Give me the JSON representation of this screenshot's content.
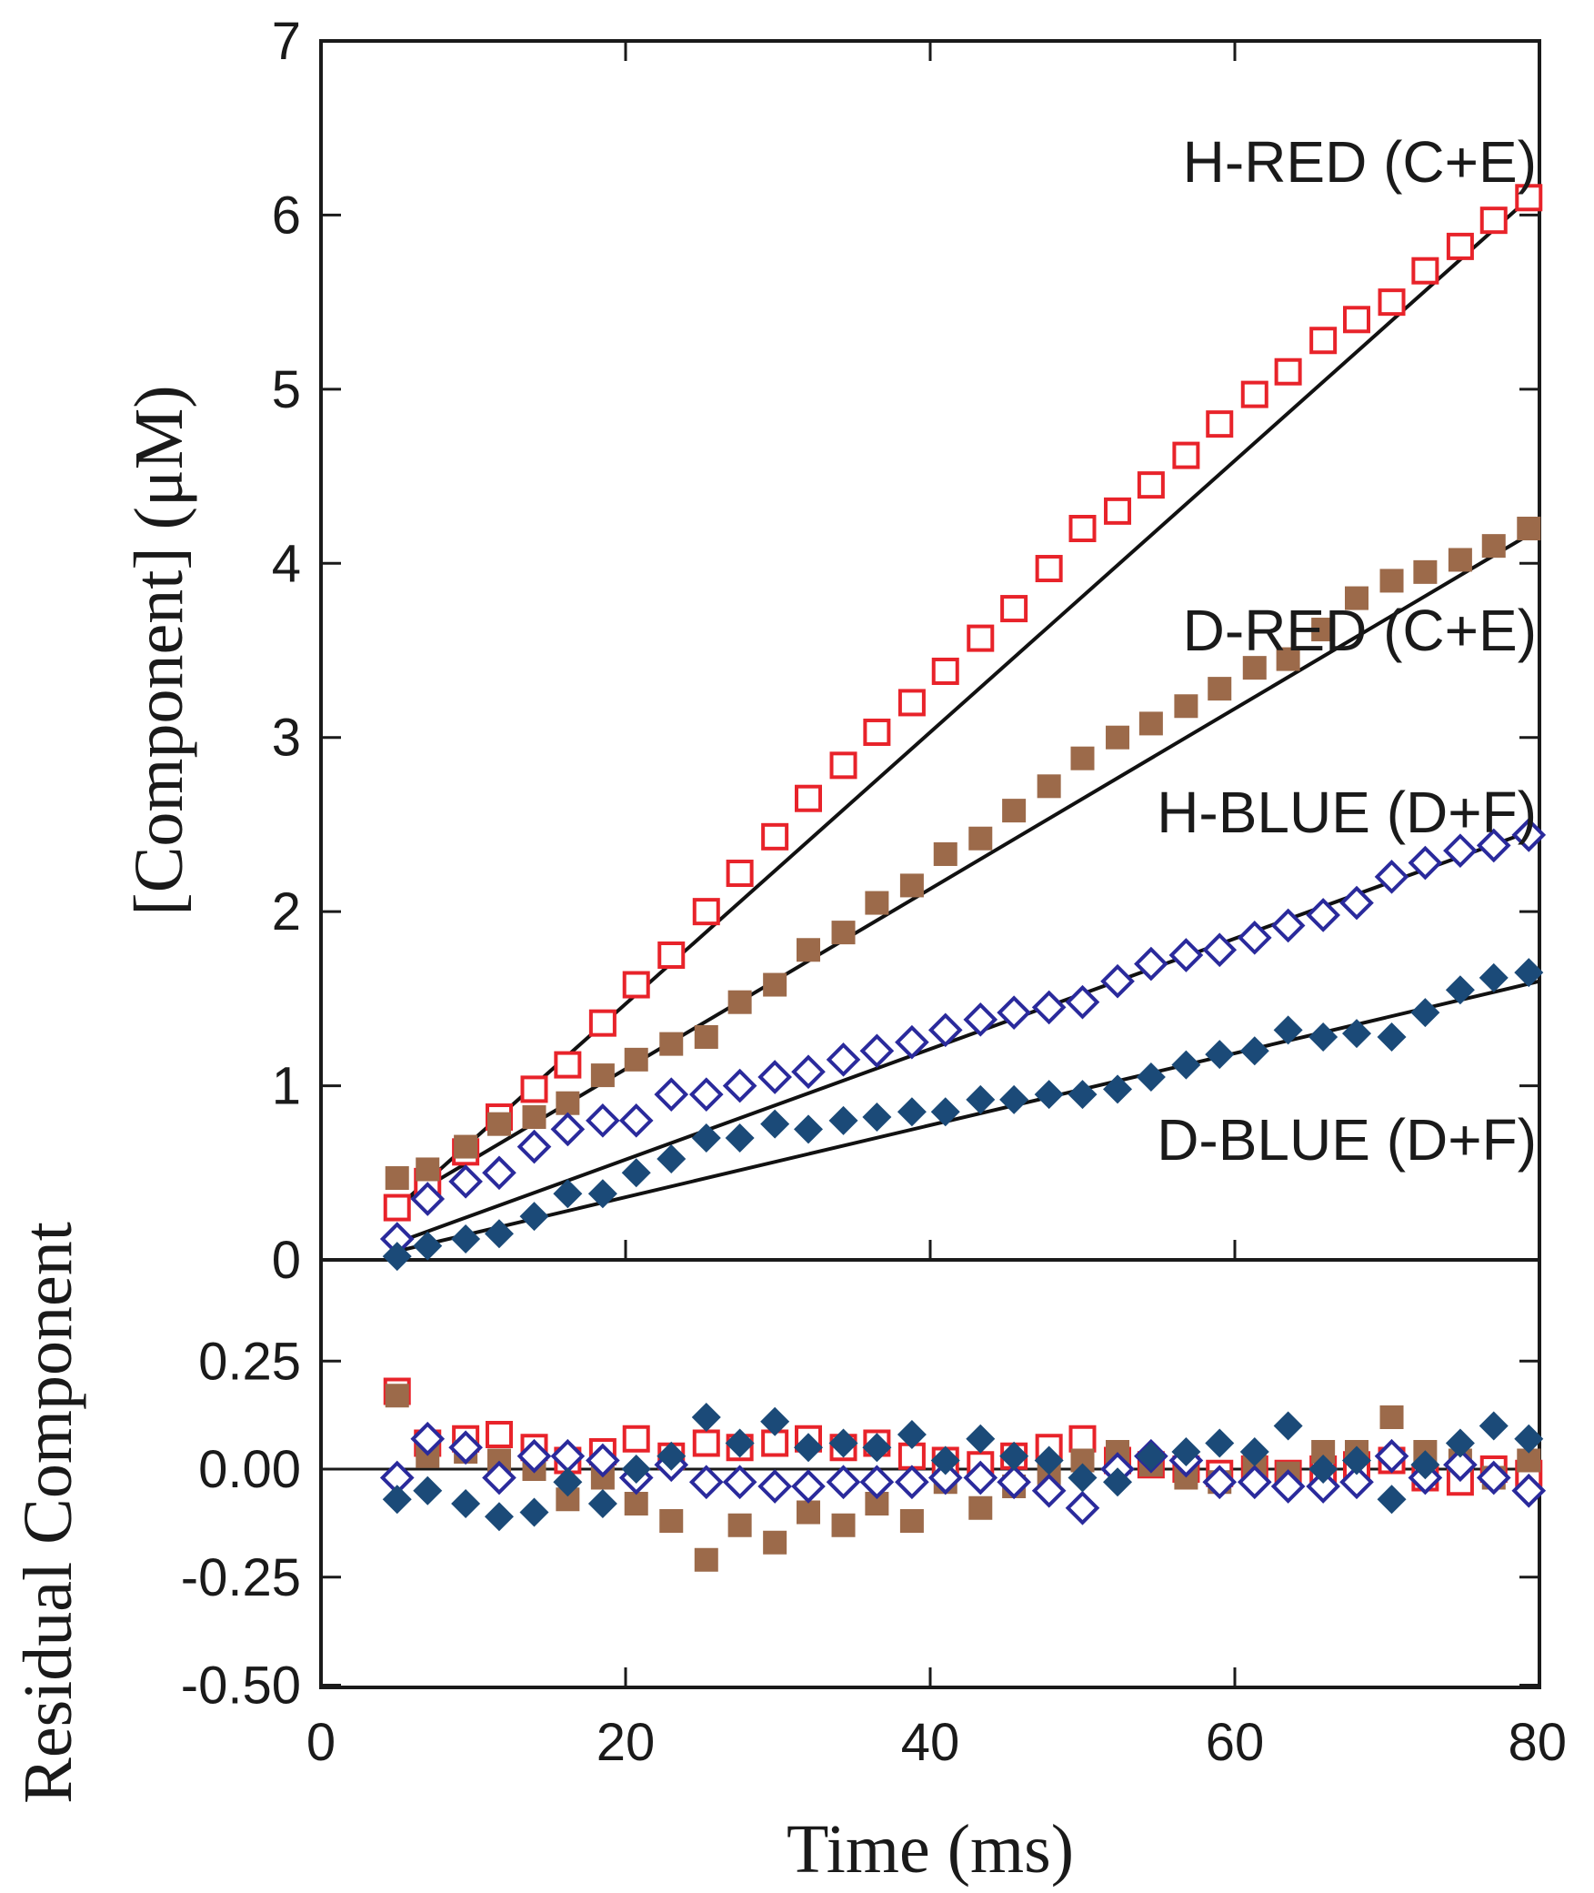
{
  "chart_data": [
    {
      "panel": "top",
      "type": "scatter",
      "title": "",
      "xlabel": "Time (ms)",
      "ylabel": "[Component] (μM)",
      "xlim": [
        0,
        80
      ],
      "ylim": [
        0,
        7
      ],
      "xticks": [
        "0",
        "20",
        "40",
        "60",
        "80"
      ],
      "yticks": [
        "0",
        "1",
        "2",
        "3",
        "4",
        "5",
        "6",
        "7"
      ],
      "grid": false,
      "series": [
        {
          "name": "H-RED (C+E)",
          "color": "#e8232a",
          "marker": "open-square",
          "x": [
            5,
            7,
            9.5,
            11.7,
            14,
            16.2,
            18.5,
            20.7,
            23,
            25.3,
            27.5,
            29.8,
            32,
            34.3,
            36.5,
            38.8,
            41,
            43.3,
            45.5,
            47.8,
            50,
            52.3,
            54.5,
            56.8,
            59,
            61.3,
            63.5,
            65.8,
            68,
            70.3,
            72.5,
            74.8,
            77,
            79.3
          ],
          "y": [
            0.3,
            0.45,
            0.62,
            0.82,
            0.98,
            1.12,
            1.36,
            1.58,
            1.75,
            2.0,
            2.22,
            2.43,
            2.65,
            2.84,
            3.03,
            3.2,
            3.38,
            3.57,
            3.74,
            3.97,
            4.2,
            4.3,
            4.45,
            4.62,
            4.8,
            4.97,
            5.1,
            5.28,
            5.4,
            5.5,
            5.68,
            5.82,
            5.97,
            6.1
          ]
        },
        {
          "name": "D-RED (C+E)",
          "color": "#9c6a4a",
          "marker": "filled-square",
          "x": [
            5,
            7,
            9.5,
            11.7,
            14,
            16.2,
            18.5,
            20.7,
            23,
            25.3,
            27.5,
            29.8,
            32,
            34.3,
            36.5,
            38.8,
            41,
            43.3,
            45.5,
            47.8,
            50,
            52.3,
            54.5,
            56.8,
            59,
            61.3,
            63.5,
            65.8,
            68,
            70.3,
            72.5,
            74.8,
            77,
            79.3
          ],
          "y": [
            0.47,
            0.52,
            0.65,
            0.78,
            0.82,
            0.9,
            1.06,
            1.15,
            1.24,
            1.28,
            1.48,
            1.58,
            1.78,
            1.88,
            2.05,
            2.15,
            2.33,
            2.42,
            2.58,
            2.72,
            2.88,
            3.0,
            3.08,
            3.18,
            3.28,
            3.4,
            3.45,
            3.62,
            3.8,
            3.9,
            3.95,
            4.02,
            4.1,
            4.2
          ]
        },
        {
          "name": "H-BLUE (D+F)",
          "color": "#2a2a9c",
          "marker": "open-diamond",
          "x": [
            5,
            7,
            9.5,
            11.7,
            14,
            16.2,
            18.5,
            20.7,
            23,
            25.3,
            27.5,
            29.8,
            32,
            34.3,
            36.5,
            38.8,
            41,
            43.3,
            45.5,
            47.8,
            50,
            52.3,
            54.5,
            56.8,
            59,
            61.3,
            63.5,
            65.8,
            68,
            70.3,
            72.5,
            74.8,
            77,
            79.3
          ],
          "y": [
            0.12,
            0.35,
            0.45,
            0.5,
            0.65,
            0.75,
            0.8,
            0.8,
            0.95,
            0.95,
            1.0,
            1.05,
            1.08,
            1.15,
            1.2,
            1.25,
            1.32,
            1.38,
            1.42,
            1.45,
            1.48,
            1.6,
            1.7,
            1.75,
            1.78,
            1.85,
            1.92,
            1.98,
            2.05,
            2.2,
            2.28,
            2.35,
            2.38,
            2.44
          ]
        },
        {
          "name": "D-BLUE (D+F)",
          "color": "#1b4a78",
          "marker": "filled-diamond",
          "x": [
            5,
            7,
            9.5,
            11.7,
            14,
            16.2,
            18.5,
            20.7,
            23,
            25.3,
            27.5,
            29.8,
            32,
            34.3,
            36.5,
            38.8,
            41,
            43.3,
            45.5,
            47.8,
            50,
            52.3,
            54.5,
            56.8,
            59,
            61.3,
            63.5,
            65.8,
            68,
            70.3,
            72.5,
            74.8,
            77,
            79.3
          ],
          "y": [
            0.02,
            0.08,
            0.12,
            0.15,
            0.25,
            0.38,
            0.38,
            0.5,
            0.58,
            0.7,
            0.7,
            0.78,
            0.75,
            0.8,
            0.82,
            0.85,
            0.85,
            0.92,
            0.92,
            0.95,
            0.95,
            0.98,
            1.05,
            1.12,
            1.18,
            1.2,
            1.32,
            1.28,
            1.3,
            1.28,
            1.42,
            1.55,
            1.62,
            1.65
          ]
        }
      ],
      "fit_lines": [
        {
          "series": "H-RED (C+E)",
          "x": [
            5,
            80
          ],
          "y": [
            0.3,
            6.15
          ]
        },
        {
          "series": "D-RED (C+E)",
          "x": [
            5,
            80
          ],
          "y": [
            0.32,
            4.2
          ]
        },
        {
          "series": "H-BLUE (D+F)",
          "x": [
            5,
            80
          ],
          "y": [
            0.1,
            2.48
          ]
        },
        {
          "series": "D-BLUE (D+F)",
          "x": [
            5,
            80
          ],
          "y": [
            0.05,
            1.6
          ]
        }
      ]
    },
    {
      "panel": "bottom",
      "type": "scatter",
      "title": "",
      "xlabel": "Time (ms)",
      "ylabel": "Residual Component",
      "xlim": [
        0,
        80
      ],
      "ylim": [
        -0.5,
        0.42
      ],
      "yticks": [
        "0.25",
        "0.00",
        "-0.25",
        "-0.50"
      ],
      "grid": false,
      "zero_line": true,
      "series": [
        {
          "name": "H-RED (C+E)",
          "color": "#e8232a",
          "marker": "open-square",
          "x": [
            5,
            7,
            9.5,
            11.7,
            14,
            16.2,
            18.5,
            20.7,
            23,
            25.3,
            27.5,
            29.8,
            32,
            34.3,
            36.5,
            38.8,
            41,
            43.3,
            45.5,
            47.8,
            50,
            52.3,
            54.5,
            56.8,
            59,
            61.3,
            63.5,
            65.8,
            68,
            70.3,
            72.5,
            74.8,
            77,
            79.3
          ],
          "y": [
            0.18,
            0.06,
            0.07,
            0.08,
            0.05,
            0.02,
            0.04,
            0.07,
            0.03,
            0.06,
            0.05,
            0.06,
            0.07,
            0.05,
            0.06,
            0.03,
            0.02,
            0.01,
            0.03,
            0.05,
            0.07,
            0.02,
            0.01,
            0.0,
            -0.01,
            0.0,
            -0.01,
            0.0,
            0.01,
            0.02,
            -0.02,
            -0.03,
            0.0,
            -0.01
          ]
        },
        {
          "name": "D-RED (C+E)",
          "color": "#9c6a4a",
          "marker": "filled-square",
          "x": [
            5,
            7,
            9.5,
            11.7,
            14,
            16.2,
            18.5,
            20.7,
            23,
            25.3,
            27.5,
            29.8,
            32,
            34.3,
            36.5,
            38.8,
            41,
            43.3,
            45.5,
            47.8,
            50,
            52.3,
            54.5,
            56.8,
            59,
            61.3,
            63.5,
            65.8,
            68,
            70.3,
            72.5,
            74.8,
            77,
            79.3
          ],
          "y": [
            0.17,
            0.03,
            0.04,
            0.02,
            0.0,
            -0.07,
            -0.02,
            -0.08,
            -0.12,
            -0.21,
            -0.13,
            -0.17,
            -0.1,
            -0.13,
            -0.08,
            -0.12,
            -0.03,
            -0.09,
            -0.04,
            -0.01,
            0.02,
            0.04,
            0.01,
            -0.02,
            -0.03,
            0.01,
            -0.01,
            0.04,
            0.04,
            0.12,
            0.04,
            0.02,
            -0.02,
            0.02
          ]
        },
        {
          "name": "H-BLUE (D+F)",
          "color": "#2a2a9c",
          "marker": "open-diamond",
          "x": [
            5,
            7,
            9.5,
            11.7,
            14,
            16.2,
            18.5,
            20.7,
            23,
            25.3,
            27.5,
            29.8,
            32,
            34.3,
            36.5,
            38.8,
            41,
            43.3,
            45.5,
            47.8,
            50,
            52.3,
            54.5,
            56.8,
            59,
            61.3,
            63.5,
            65.8,
            68,
            70.3,
            72.5,
            74.8,
            77,
            79.3
          ],
          "y": [
            -0.02,
            0.07,
            0.05,
            -0.02,
            0.03,
            0.03,
            0.02,
            -0.02,
            0.01,
            -0.03,
            -0.03,
            -0.04,
            -0.04,
            -0.03,
            -0.03,
            -0.03,
            -0.02,
            -0.02,
            -0.03,
            -0.05,
            -0.09,
            0.0,
            0.03,
            0.02,
            -0.03,
            -0.03,
            -0.04,
            -0.04,
            -0.03,
            0.03,
            -0.02,
            0.01,
            -0.02,
            -0.05
          ]
        },
        {
          "name": "D-BLUE (D+F)",
          "color": "#1b4a78",
          "marker": "filled-diamond",
          "x": [
            5,
            7,
            9.5,
            11.7,
            14,
            16.2,
            18.5,
            20.7,
            23,
            25.3,
            27.5,
            29.8,
            32,
            34.3,
            36.5,
            38.8,
            41,
            43.3,
            45.5,
            47.8,
            50,
            52.3,
            54.5,
            56.8,
            59,
            61.3,
            63.5,
            65.8,
            68,
            70.3,
            72.5,
            74.8,
            77,
            79.3
          ],
          "y": [
            -0.07,
            -0.05,
            -0.08,
            -0.11,
            -0.1,
            -0.03,
            -0.08,
            0.0,
            0.03,
            0.12,
            0.06,
            0.11,
            0.05,
            0.06,
            0.05,
            0.08,
            0.02,
            0.07,
            0.03,
            0.02,
            -0.02,
            -0.03,
            0.03,
            0.04,
            0.06,
            0.04,
            0.1,
            0.0,
            0.02,
            -0.07,
            0.01,
            0.06,
            0.1,
            0.07
          ]
        }
      ]
    }
  ]
}
